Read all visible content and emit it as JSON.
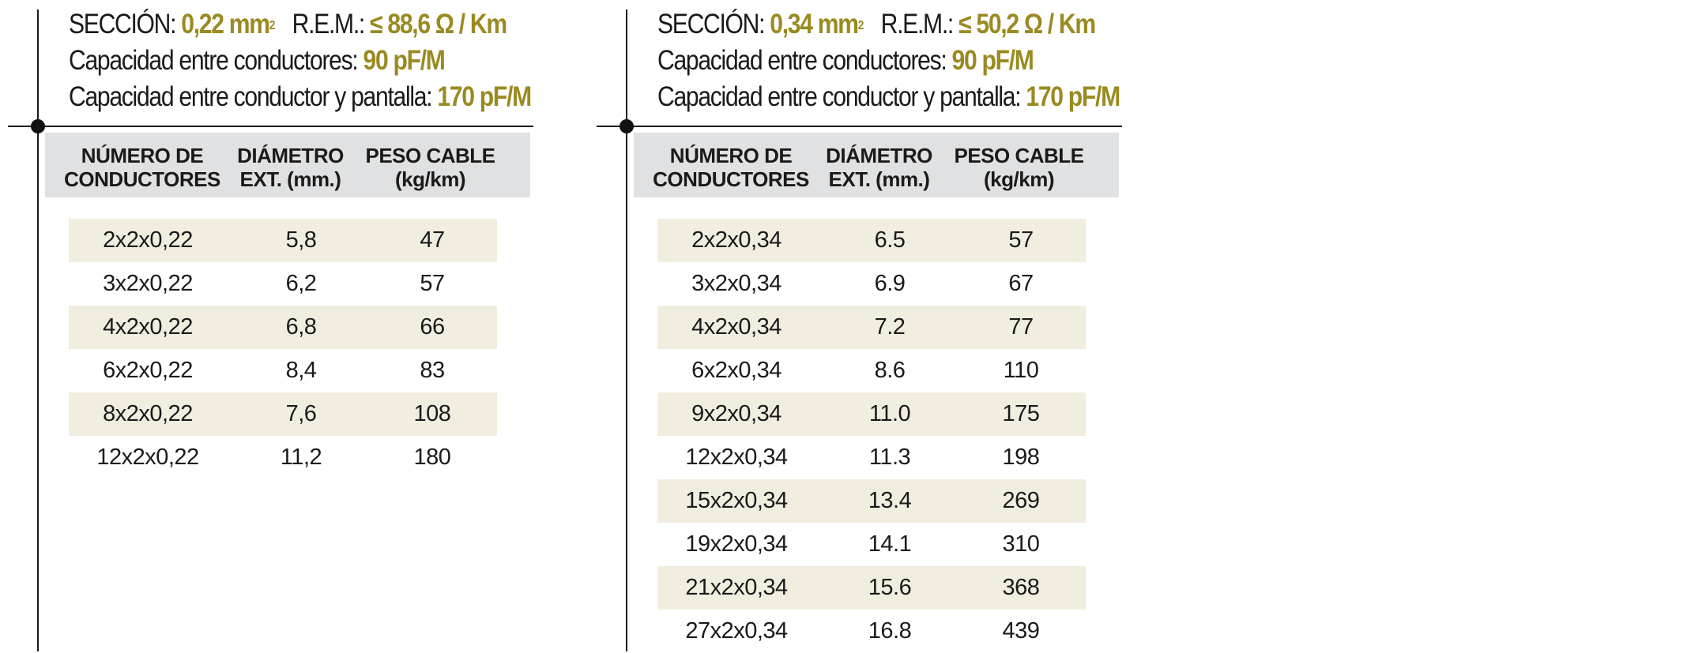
{
  "left": {
    "spec": {
      "section_label": "SECCIÓN:",
      "section_value": "0,22 mm",
      "section_sup": "2",
      "rem_label": "R.E.M.:",
      "rem_value": "≤ 88,6 Ω / Km",
      "cap_conductors_label": "Capacidad entre conductores:",
      "cap_conductors_value": "90 pF/M",
      "cap_shield_label": "Capacidad entre conductor y pantalla:",
      "cap_shield_value": "170 pF/M"
    },
    "headers": [
      [
        "NÚMERO DE",
        "CONDUCTORES"
      ],
      [
        "DIÁMETRO",
        "EXT. (mm.)"
      ],
      [
        "PESO CABLE",
        "(kg/km)"
      ]
    ],
    "rows": [
      [
        "2x2x0,22",
        "5,8",
        "47"
      ],
      [
        "3x2x0,22",
        "6,2",
        "57"
      ],
      [
        "4x2x0,22",
        "6,8",
        "66"
      ],
      [
        "6x2x0,22",
        "8,4",
        "83"
      ],
      [
        "8x2x0,22",
        "7,6",
        "108"
      ],
      [
        "12x2x0,22",
        "11,2",
        "180"
      ]
    ]
  },
  "right": {
    "spec": {
      "section_label": "SECCIÓN:",
      "section_value": "0,34 mm",
      "section_sup": "2",
      "rem_label": "R.E.M.:",
      "rem_value": "≤ 50,2 Ω / Km",
      "cap_conductors_label": "Capacidad entre conductores:",
      "cap_conductors_value": "90 pF/M",
      "cap_shield_label": "Capacidad entre conductor y pantalla:",
      "cap_shield_value": "170 pF/M"
    },
    "headers": [
      [
        "NÚMERO DE",
        "CONDUCTORES"
      ],
      [
        "DIÁMETRO",
        "EXT. (mm.)"
      ],
      [
        "PESO CABLE",
        "(kg/km)"
      ]
    ],
    "rows": [
      [
        "2x2x0,34",
        "6.5",
        "57"
      ],
      [
        "3x2x0,34",
        "6.9",
        "67"
      ],
      [
        "4x2x0,34",
        "7.2",
        "77"
      ],
      [
        "6x2x0,34",
        "8.6",
        "110"
      ],
      [
        "9x2x0,34",
        "11.0",
        "175"
      ],
      [
        "12x2x0,34",
        "11.3",
        "198"
      ],
      [
        "15x2x0,34",
        "13.4",
        "269"
      ],
      [
        "19x2x0,34",
        "14.1",
        "310"
      ],
      [
        "21x2x0,34",
        "15.6",
        "368"
      ],
      [
        "27x2x0,34",
        "16.8",
        "439"
      ]
    ]
  },
  "colors": {
    "highlight": "#9a8a21",
    "header_bg": "#dfe1e3",
    "row_shade": "#f1eee0"
  }
}
